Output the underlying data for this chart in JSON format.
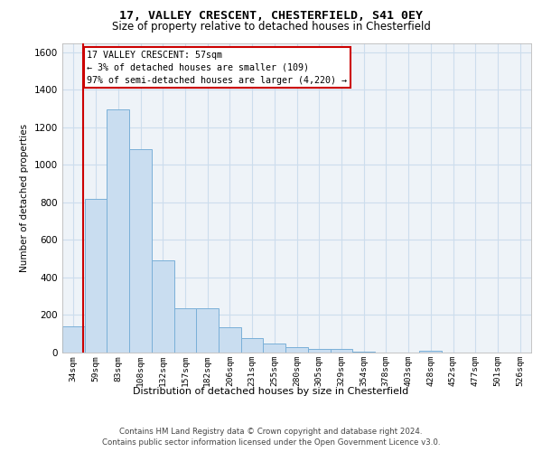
{
  "title1": "17, VALLEY CRESCENT, CHESTERFIELD, S41 0EY",
  "title2": "Size of property relative to detached houses in Chesterfield",
  "xlabel": "Distribution of detached houses by size in Chesterfield",
  "ylabel": "Number of detached properties",
  "categories": [
    "34sqm",
    "59sqm",
    "83sqm",
    "108sqm",
    "132sqm",
    "157sqm",
    "182sqm",
    "206sqm",
    "231sqm",
    "255sqm",
    "280sqm",
    "305sqm",
    "329sqm",
    "354sqm",
    "378sqm",
    "403sqm",
    "428sqm",
    "452sqm",
    "477sqm",
    "501sqm",
    "526sqm"
  ],
  "values": [
    140,
    820,
    1295,
    1085,
    490,
    235,
    235,
    135,
    75,
    47,
    30,
    20,
    18,
    5,
    0,
    0,
    10,
    0,
    0,
    0,
    0
  ],
  "bar_color": "#c9ddf0",
  "bar_edge_color": "#7ab0d8",
  "annotation_label": "17 VALLEY CRESCENT: 57sqm",
  "annotation_line1": "← 3% of detached houses are smaller (109)",
  "annotation_line2": "97% of semi-detached houses are larger (4,220) →",
  "red_color": "#cc0000",
  "ylim": [
    0,
    1650
  ],
  "yticks": [
    0,
    200,
    400,
    600,
    800,
    1000,
    1200,
    1400,
    1600
  ],
  "grid_color": "#ccdded",
  "bg_color": "#eef3f8",
  "footer1": "Contains HM Land Registry data © Crown copyright and database right 2024.",
  "footer2": "Contains public sector information licensed under the Open Government Licence v3.0."
}
